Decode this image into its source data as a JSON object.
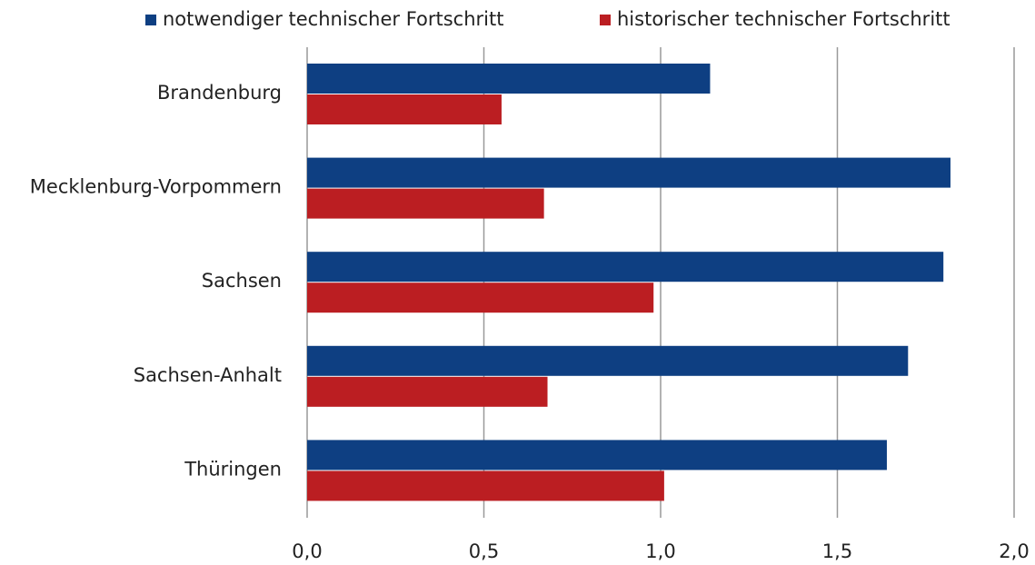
{
  "chart_data": {
    "type": "hbar",
    "categories": [
      "Brandenburg",
      "Mecklenburg-Vorpommern",
      "Sachsen",
      "Sachsen-Anhalt",
      "Thüringen"
    ],
    "series": [
      {
        "name": "notwendiger technischer Fortschritt",
        "color": "#0e3f82",
        "values": [
          1.14,
          1.82,
          1.8,
          1.7,
          1.64
        ]
      },
      {
        "name": "historischer technischer Fortschritt",
        "color": "#bb1e22",
        "values": [
          0.55,
          0.67,
          0.98,
          0.68,
          1.01
        ]
      }
    ],
    "xlim": [
      0,
      2
    ],
    "xticks": [
      {
        "value": 0,
        "label": "0,0"
      },
      {
        "value": 0.5,
        "label": "0,5"
      },
      {
        "value": 1,
        "label": "1,0"
      },
      {
        "value": 1.5,
        "label": "1,5"
      },
      {
        "value": 2,
        "label": "2,0"
      }
    ],
    "grid": true,
    "legend": "top"
  }
}
